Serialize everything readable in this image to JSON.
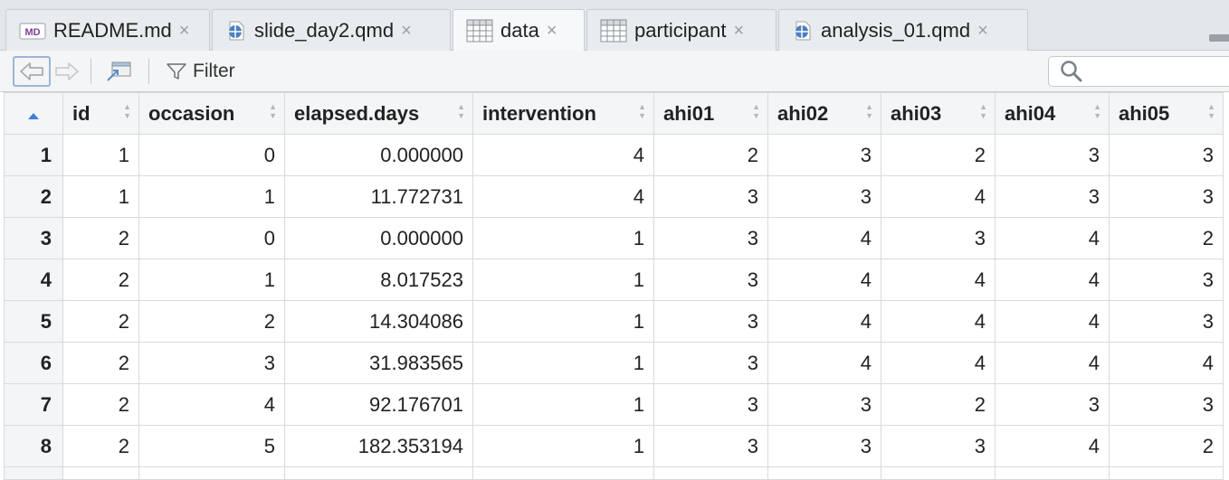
{
  "tabs": [
    {
      "label": "README.md",
      "icon": "markdown-icon",
      "active": false
    },
    {
      "label": "slide_day2.qmd",
      "icon": "quarto-icon",
      "active": false
    },
    {
      "label": "data",
      "icon": "table-icon",
      "active": true
    },
    {
      "label": "participant",
      "icon": "table-icon",
      "active": false
    },
    {
      "label": "analysis_01.qmd",
      "icon": "quarto-icon",
      "active": false
    }
  ],
  "tab_close_glyph": "×",
  "markdown_icon_text": "MD",
  "toolbar": {
    "filter_label": "Filter",
    "search_placeholder": ""
  },
  "colors": {
    "accent": "#3d7fd6",
    "markdown_purple": "#7b3f98",
    "quarto_blue": "#4a7fc1"
  },
  "table": {
    "columns": [
      "id",
      "occasion",
      "elapsed.days",
      "intervention",
      "ahi01",
      "ahi02",
      "ahi03",
      "ahi04",
      "ahi05"
    ],
    "rows": [
      {
        "n": "1",
        "cells": [
          "1",
          "0",
          "0.000000",
          "4",
          "2",
          "3",
          "2",
          "3",
          "3"
        ]
      },
      {
        "n": "2",
        "cells": [
          "1",
          "1",
          "11.772731",
          "4",
          "3",
          "3",
          "4",
          "3",
          "3"
        ]
      },
      {
        "n": "3",
        "cells": [
          "2",
          "0",
          "0.000000",
          "1",
          "3",
          "4",
          "3",
          "4",
          "2"
        ]
      },
      {
        "n": "4",
        "cells": [
          "2",
          "1",
          "8.017523",
          "1",
          "3",
          "4",
          "4",
          "4",
          "3"
        ]
      },
      {
        "n": "5",
        "cells": [
          "2",
          "2",
          "14.304086",
          "1",
          "3",
          "4",
          "4",
          "4",
          "3"
        ]
      },
      {
        "n": "6",
        "cells": [
          "2",
          "3",
          "31.983565",
          "1",
          "3",
          "4",
          "4",
          "4",
          "4"
        ]
      },
      {
        "n": "7",
        "cells": [
          "2",
          "4",
          "92.176701",
          "1",
          "3",
          "3",
          "2",
          "3",
          "3"
        ]
      },
      {
        "n": "8",
        "cells": [
          "2",
          "5",
          "182.353194",
          "1",
          "3",
          "3",
          "3",
          "4",
          "2"
        ]
      }
    ]
  }
}
